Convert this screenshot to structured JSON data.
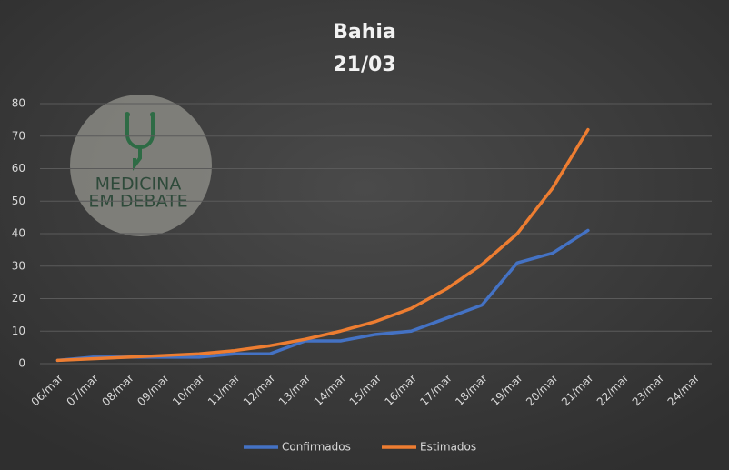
{
  "chart_data": {
    "type": "line",
    "title": "Bahia",
    "subtitle": "21/03",
    "categories": [
      "06/mar",
      "07/mar",
      "08/mar",
      "09/mar",
      "10/mar",
      "11/mar",
      "12/mar",
      "13/mar",
      "14/mar",
      "15/mar",
      "16/mar",
      "17/mar",
      "18/mar",
      "19/mar",
      "20/mar",
      "21/mar",
      "22/mar",
      "23/mar",
      "24/mar"
    ],
    "series": [
      {
        "name": "Confirmados",
        "color": "#4472c4",
        "values": [
          1,
          2,
          2,
          2,
          2,
          3,
          3,
          7,
          7,
          9,
          10,
          14,
          18,
          31,
          34,
          41,
          null,
          null,
          null
        ]
      },
      {
        "name": "Estimados",
        "color": "#ed7d31",
        "values": [
          1,
          1.5,
          2,
          2.5,
          3,
          4,
          5.5,
          7.5,
          10,
          13,
          17,
          23,
          30.5,
          40,
          54,
          72,
          null,
          null,
          null
        ]
      }
    ],
    "ylim": [
      0,
      80
    ],
    "yticks": [
      0,
      10,
      20,
      30,
      40,
      50,
      60,
      70,
      80
    ],
    "grid": true,
    "legend": "bottom",
    "logo": {
      "line1": "MEDICINA",
      "line2": "EM DEBATE"
    }
  }
}
